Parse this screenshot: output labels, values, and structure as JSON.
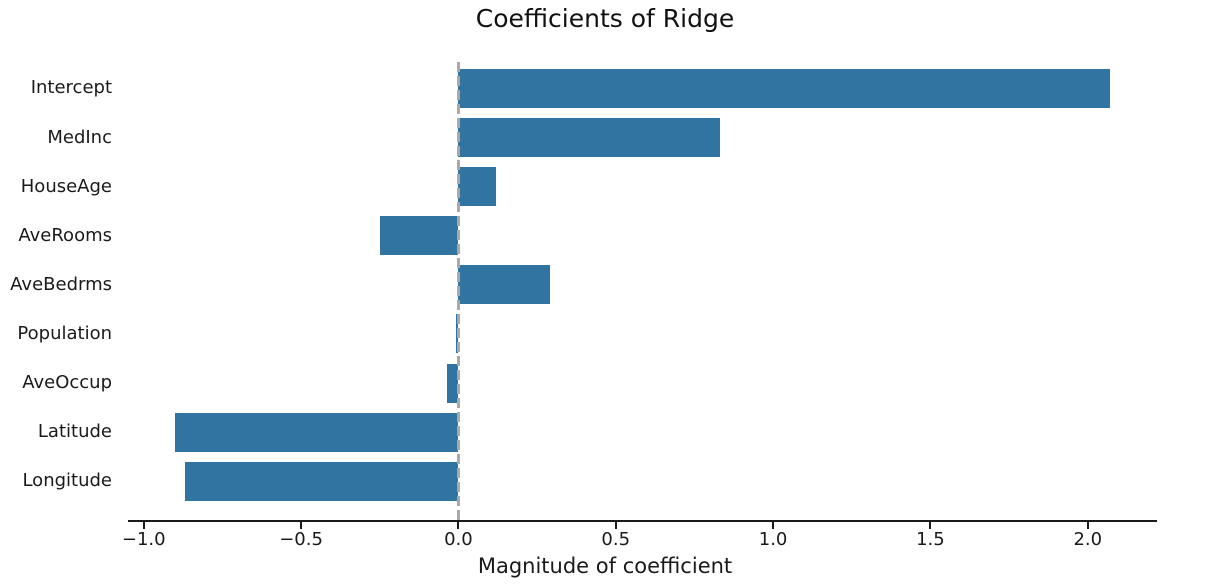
{
  "chart_data": {
    "type": "bar",
    "orientation": "horizontal",
    "title": "Coefficients of Ridge",
    "xlabel": "Magnitude of coefficient",
    "ylabel": "",
    "categories": [
      "Intercept",
      "MedInc",
      "HouseAge",
      "AveRooms",
      "AveBedrms",
      "Population",
      "AveOccup",
      "Latitude",
      "Longitude"
    ],
    "values": [
      2.07,
      0.83,
      0.12,
      -0.25,
      0.29,
      -0.008,
      -0.036,
      -0.9,
      -0.87
    ],
    "xlim": [
      -1.05,
      2.22
    ],
    "xticks": [
      -1.0,
      -0.5,
      0.0,
      0.5,
      1.0,
      1.5,
      2.0
    ],
    "xtick_labels": [
      "−1.0",
      "−0.5",
      "0.0",
      "0.5",
      "1.0",
      "1.5",
      "2.0"
    ],
    "grid": false,
    "legend_position": "none",
    "colors": {
      "bar": "#3274a1",
      "zero_line": "#a9a9a9",
      "axis": "#1a1a1a",
      "text": "#1a1a1a"
    },
    "zero_reference_line": {
      "x": 0.0,
      "style": "dashed"
    }
  }
}
